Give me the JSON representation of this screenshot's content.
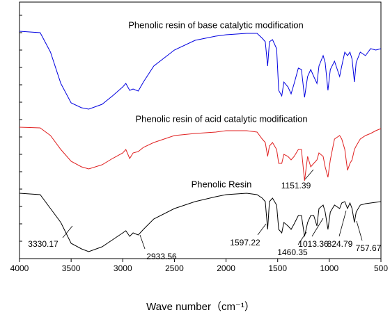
{
  "chart_data": {
    "type": "line",
    "x_label": "Wave number（cm⁻¹）",
    "x": [
      4000,
      3800,
      3700,
      3600,
      3500,
      3400,
      3330,
      3200,
      3100,
      3000,
      2970,
      2933,
      2900,
      2850,
      2800,
      2700,
      2500,
      2300,
      2100,
      2000,
      1800,
      1700,
      1650,
      1620,
      1597,
      1580,
      1550,
      1510,
      1490,
      1460,
      1440,
      1400,
      1370,
      1340,
      1300,
      1270,
      1240,
      1210,
      1180,
      1151,
      1120,
      1100,
      1060,
      1040,
      1013,
      990,
      950,
      900,
      880,
      850,
      824,
      800,
      780,
      757,
      740,
      700,
      650,
      600,
      550,
      500
    ],
    "series": [
      {
        "name": "Phenolic resin of base catalytic modification",
        "color": "#0000e0",
        "values": [
          327,
          325,
          297,
          252,
          224,
          217,
          215,
          222,
          234,
          247,
          252,
          242,
          244,
          241,
          254,
          277,
          300,
          314,
          320,
          322,
          324,
          324,
          317,
          312,
          277,
          312,
          315,
          302,
          242,
          234,
          254,
          247,
          237,
          252,
          274,
          272,
          232,
          262,
          272,
          262,
          252,
          277,
          292,
          282,
          242,
          272,
          284,
          262,
          277,
          297,
          292,
          297,
          287,
          254,
          282,
          297,
          292,
          302,
          300,
          302
        ]
      },
      {
        "name": "Phenolic resin of acid catalytic modification",
        "color": "#e02020",
        "values": [
          189,
          188,
          177,
          157,
          140,
          132,
          129,
          135,
          144,
          152,
          157,
          144,
          152,
          154,
          160,
          167,
          177,
          180,
          182,
          184,
          184,
          182,
          172,
          167,
          147,
          162,
          167,
          157,
          137,
          137,
          150,
          147,
          142,
          147,
          157,
          157,
          112,
          147,
          132,
          137,
          142,
          152,
          147,
          132,
          117,
          142,
          172,
          177,
          172,
          157,
          127,
          137,
          142,
          157,
          162,
          172,
          177,
          180,
          184,
          187
        ]
      },
      {
        "name": "Phenolic Resin",
        "color": "#000000",
        "values": [
          94,
          92,
          72,
          52,
          22,
          14,
          10,
          17,
          27,
          37,
          40,
          32,
          37,
          34,
          42,
          57,
          72,
          82,
          89,
          92,
          94,
          92,
          87,
          82,
          42,
          82,
          87,
          77,
          42,
          37,
          52,
          47,
          42,
          50,
          62,
          62,
          32,
          52,
          62,
          62,
          47,
          72,
          77,
          67,
          42,
          67,
          77,
          72,
          80,
          82,
          72,
          80,
          72,
          52,
          67,
          77,
          79,
          80,
          81,
          82
        ]
      }
    ],
    "annotations": [
      "3330.17",
      "2933.56",
      "1597.22",
      "1460.35",
      "1151.39",
      "1013.36",
      "824.79",
      "757.67"
    ],
    "xlim": [
      4000,
      500
    ],
    "xticks": [
      4000,
      3500,
      3000,
      2500,
      2000,
      1500,
      1000,
      500
    ],
    "ylim": [
      0,
      369
    ],
    "yticks": [
      25,
      50,
      75,
      100,
      125,
      150,
      175,
      200,
      225,
      250,
      275,
      300,
      325,
      350
    ]
  }
}
